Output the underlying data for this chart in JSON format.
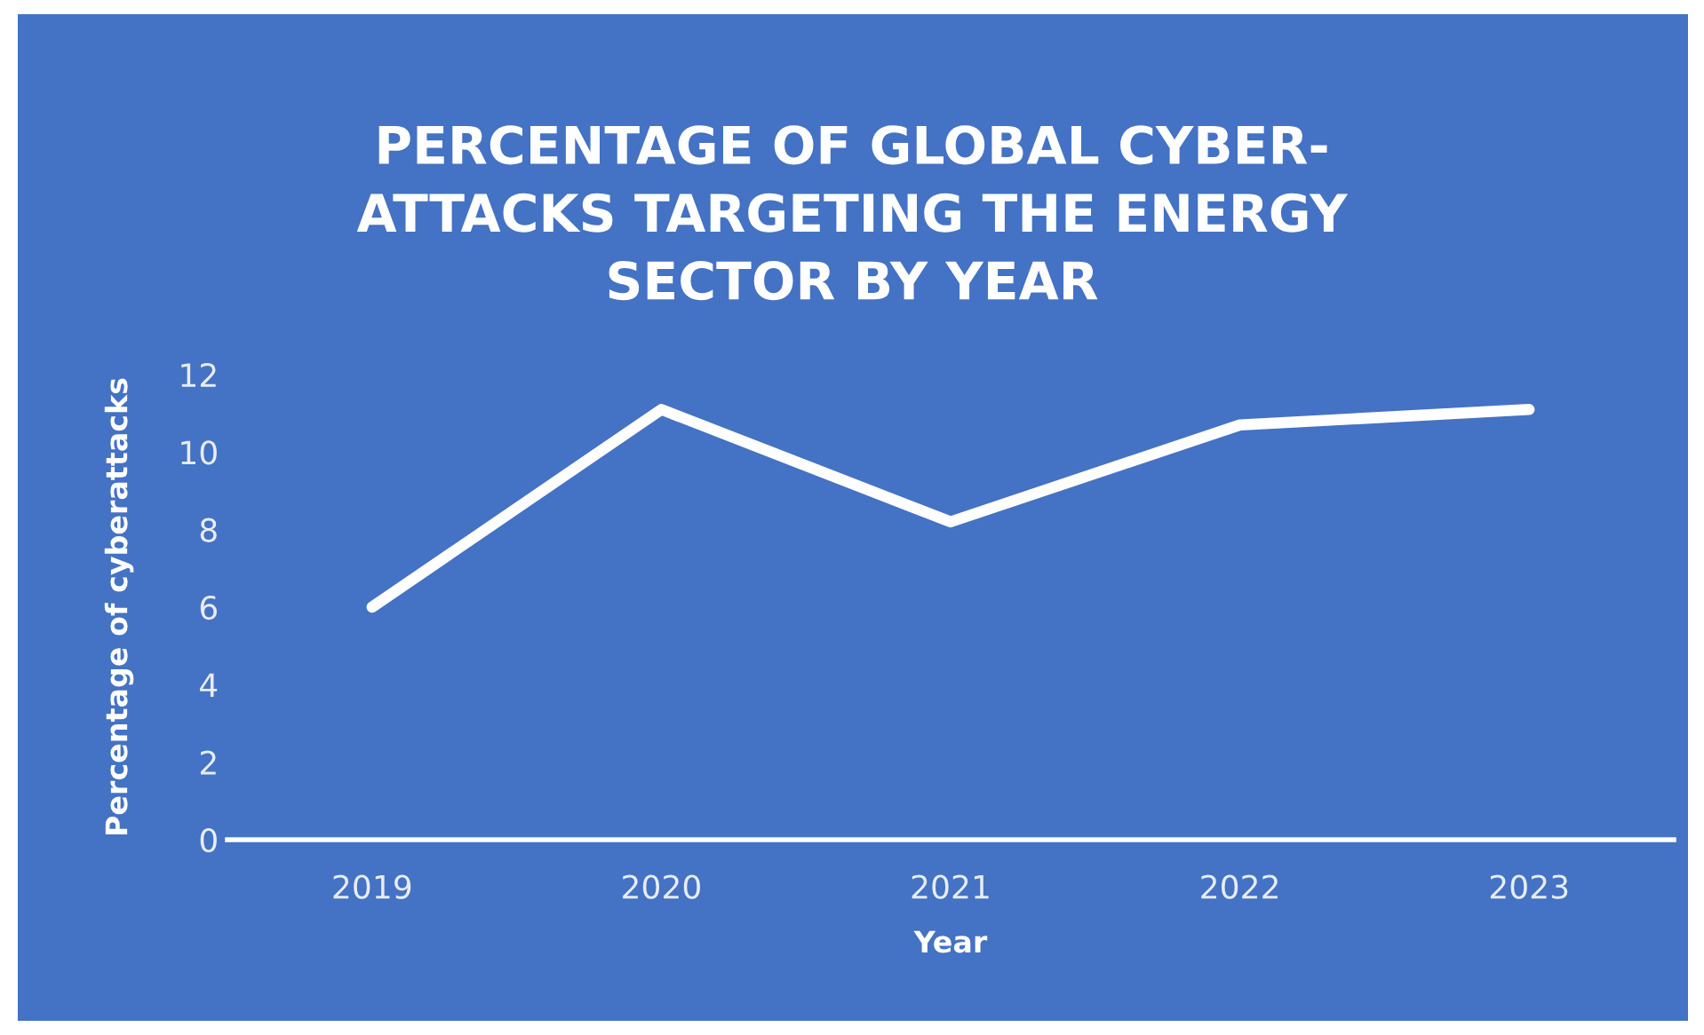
{
  "chart_data": {
    "type": "line",
    "title": "PERCENTAGE OF GLOBAL CYBER-\nATTACKS TARGETING THE ENERGY\nSECTOR BY YEAR",
    "xlabel": "Year",
    "ylabel": "Percentage of cyberattacks",
    "categories": [
      "2019",
      "2020",
      "2021",
      "2022",
      "2023"
    ],
    "series": [
      {
        "color": "#ffffff",
        "values": [
          6,
          11.1,
          8.2,
          10.7,
          11.1
        ]
      }
    ],
    "ylim": [
      0,
      12
    ],
    "yticks": [
      0,
      2,
      4,
      6,
      8,
      10,
      12
    ],
    "grid": false,
    "legend": false,
    "marker": "none",
    "line_style": "solid"
  }
}
